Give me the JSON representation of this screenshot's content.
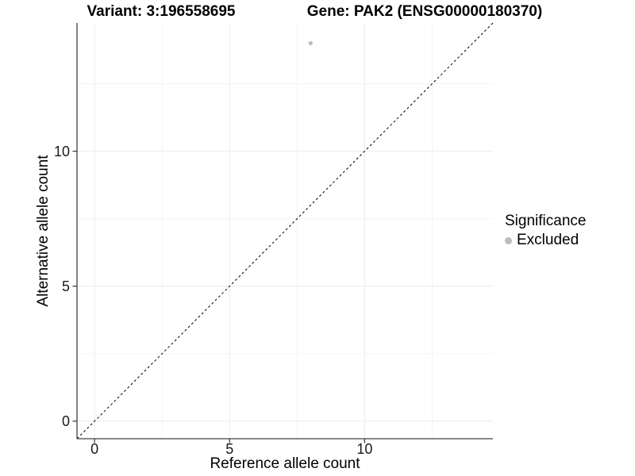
{
  "chart_data": {
    "type": "scatter",
    "title_left": "Variant: 3:196558695",
    "title_right": "Gene: PAK2 (ENSG00000180370)",
    "xlabel": "Reference allele count",
    "ylabel": "Alternative allele count",
    "xlim": [
      -0.65,
      14.75
    ],
    "ylim": [
      -0.65,
      14.75
    ],
    "x_ticks": [
      0,
      5,
      10
    ],
    "y_ticks": [
      0,
      5,
      10
    ],
    "x_minor_ticks": [
      2.5,
      7.5,
      12.5
    ],
    "y_minor_ticks": [
      2.5,
      7.5,
      12.5
    ],
    "grid": true,
    "grid_major_color": "#ececec",
    "grid_minor_color": "#f4f4f4",
    "axis_line_color": "#404040",
    "tick_label_color": "#1a1a1a",
    "series": [
      {
        "name": "Excluded",
        "color": "#bdbdbd",
        "points": [
          {
            "x": 8,
            "y": 14
          }
        ]
      }
    ],
    "reference_line": {
      "type": "identity",
      "style": "dashed",
      "color": "#000000"
    },
    "legend": {
      "title": "Significance",
      "position": "right",
      "items": [
        {
          "label": "Excluded",
          "color": "#bdbdbd",
          "marker": "circle"
        }
      ]
    }
  }
}
